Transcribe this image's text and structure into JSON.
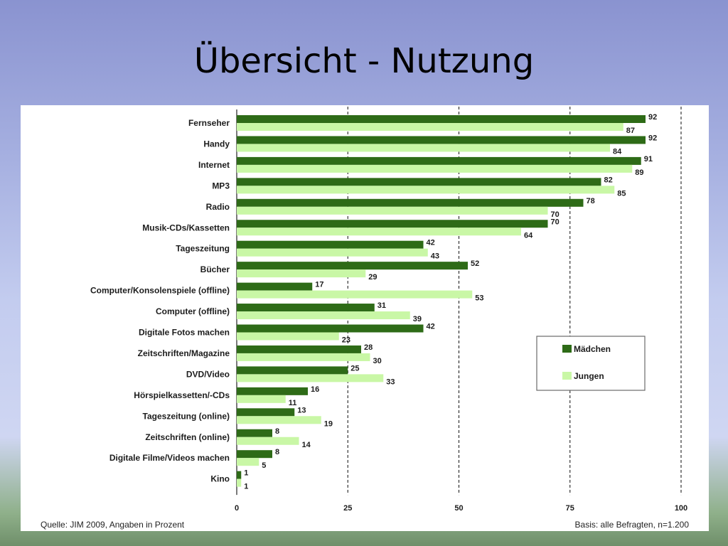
{
  "slide": {
    "title": "Übersicht - Nutzung"
  },
  "footer": {
    "source": "Quelle: JIM 2009, Angaben in Prozent",
    "basis": "Basis: alle Befragten, n=1.200"
  },
  "colors": {
    "maedchen": "#2e6b17",
    "jungen": "#c9f7a6"
  },
  "chart_data": {
    "type": "bar",
    "orientation": "horizontal",
    "categories": [
      "Fernseher",
      "Handy",
      "Internet",
      "MP3",
      "Radio",
      "Musik-CDs/Kassetten",
      "Tageszeitung",
      "Bücher",
      "Computer/Konsolenspiele (offline)",
      "Computer (offline)",
      "Digitale Fotos machen",
      "Zeitschriften/Magazine",
      "DVD/Video",
      "Hörspielkassetten/-CDs",
      "Tageszeitung (online)",
      "Zeitschriften (online)",
      "Digitale Filme/Videos machen",
      "Kino"
    ],
    "series": [
      {
        "name": "Mädchen",
        "values": [
          92,
          92,
          91,
          82,
          78,
          70,
          42,
          52,
          17,
          31,
          42,
          28,
          25,
          16,
          13,
          8,
          8,
          1
        ]
      },
      {
        "name": "Jungen",
        "values": [
          87,
          84,
          89,
          85,
          70,
          64,
          43,
          29,
          53,
          39,
          23,
          30,
          33,
          11,
          19,
          14,
          5,
          1
        ]
      }
    ],
    "xlim": [
      0,
      100
    ],
    "xticks": [
      0,
      25,
      50,
      75,
      100
    ],
    "grid": "dashed vertical at 25, 50, 75, 100",
    "legend": "right"
  }
}
